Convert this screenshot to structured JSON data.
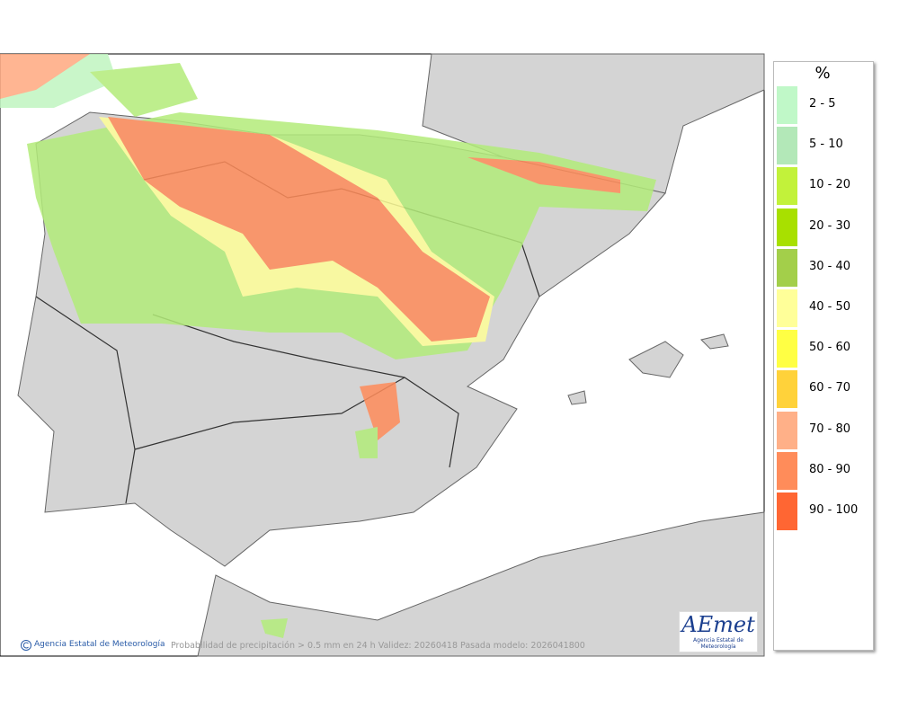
{
  "legend": {
    "title": "%",
    "items": [
      {
        "label": "2 - 5",
        "color": "#c0f8c8"
      },
      {
        "label": "5 - 10",
        "color": "#b3e8b8"
      },
      {
        "label": "10 - 20",
        "color": "#c2f23a"
      },
      {
        "label": "20 - 30",
        "color": "#a8e000"
      },
      {
        "label": "30 - 40",
        "color": "#a3cf4a"
      },
      {
        "label": "40 - 50",
        "color": "#ffff99"
      },
      {
        "label": "50 - 60",
        "color": "#ffff44"
      },
      {
        "label": "60 - 70",
        "color": "#ffd23a"
      },
      {
        "label": "70 - 80",
        "color": "#ffb088"
      },
      {
        "label": "80 - 90",
        "color": "#ff8c5a"
      },
      {
        "label": "90 - 100",
        "color": "#ff6633"
      }
    ]
  },
  "footer": {
    "copyright": "Agencia Estatal de Meteorología",
    "caption": "Probabilidad de precipitación > 0.5 mm en 24 h Validez: 20260418 Pasada modelo: 2026041800"
  },
  "logo": {
    "name": "AEmet",
    "subtitle": "Agencia Estatal de Meteorología"
  }
}
